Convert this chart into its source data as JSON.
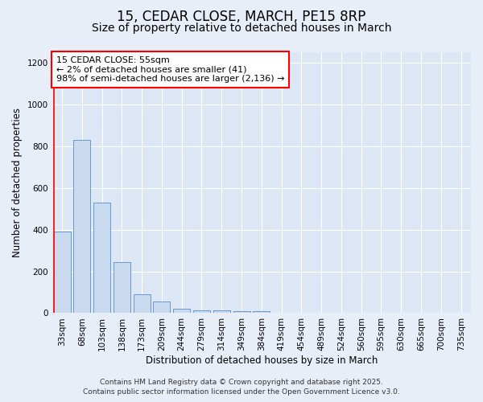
{
  "title": "15, CEDAR CLOSE, MARCH, PE15 8RP",
  "subtitle": "Size of property relative to detached houses in March",
  "xlabel": "Distribution of detached houses by size in March",
  "ylabel": "Number of detached properties",
  "bar_labels": [
    "33sqm",
    "68sqm",
    "103sqm",
    "138sqm",
    "173sqm",
    "209sqm",
    "244sqm",
    "279sqm",
    "314sqm",
    "349sqm",
    "384sqm",
    "419sqm",
    "454sqm",
    "489sqm",
    "524sqm",
    "560sqm",
    "595sqm",
    "630sqm",
    "665sqm",
    "700sqm",
    "735sqm"
  ],
  "bar_values": [
    390,
    830,
    530,
    245,
    90,
    55,
    20,
    15,
    12,
    10,
    8,
    0,
    0,
    0,
    0,
    0,
    0,
    0,
    0,
    0,
    0
  ],
  "bar_color": "#c9d9ee",
  "bar_edge_color": "#6699cc",
  "ylim": [
    0,
    1250
  ],
  "yticks": [
    0,
    200,
    400,
    600,
    800,
    1000,
    1200
  ],
  "red_line_x": -0.42,
  "annotation_title": "15 CEDAR CLOSE: 55sqm",
  "annotation_line1": "← 2% of detached houses are smaller (41)",
  "annotation_line2": "98% of semi-detached houses are larger (2,136) →",
  "footer_line1": "Contains HM Land Registry data © Crown copyright and database right 2025.",
  "footer_line2": "Contains public sector information licensed under the Open Government Licence v3.0.",
  "bg_color": "#e8eef8",
  "plot_bg_color": "#dce6f5",
  "grid_color": "#ffffff",
  "title_fontsize": 12,
  "subtitle_fontsize": 10,
  "axis_label_fontsize": 8.5,
  "tick_fontsize": 7.5,
  "annotation_fontsize": 8,
  "footer_fontsize": 6.5
}
